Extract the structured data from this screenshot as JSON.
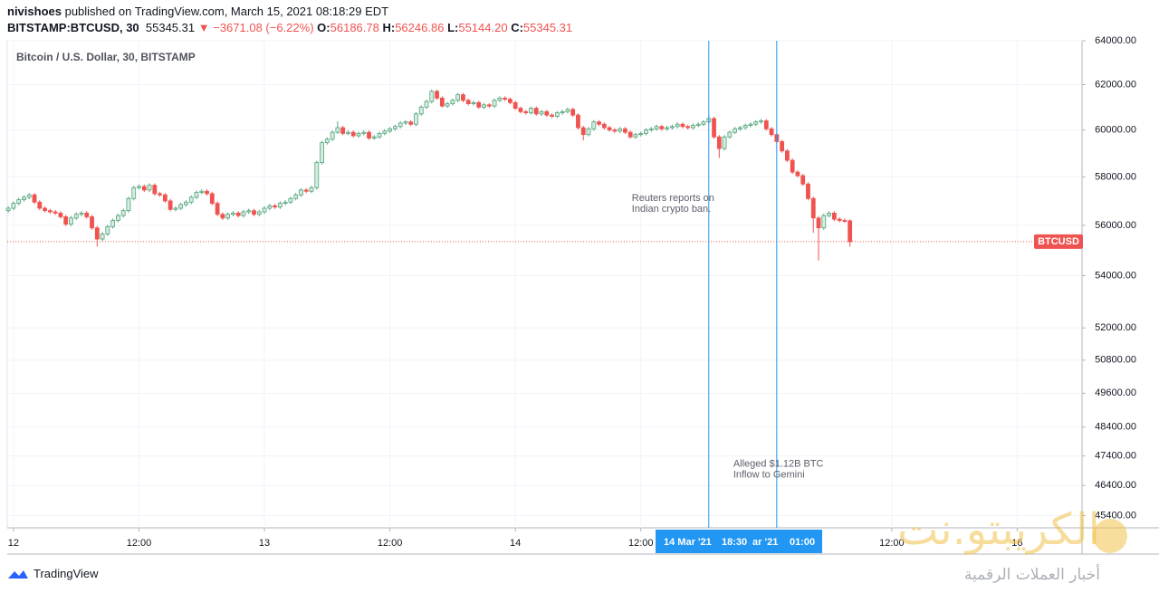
{
  "header": {
    "author": "nivishoes",
    "published": "published on TradingView.com, March 15, 2021 08:18:29 EDT",
    "symbol": "BITSTAMP:BTCUSD, 30",
    "last": "55345.31",
    "change": "▼ −3671.08 (−6.22%)",
    "o_key": "O:",
    "o": "56186.78",
    "h_key": "H:",
    "h": "56246.86",
    "l_key": "L:",
    "l": "55144.20",
    "c_key": "C:",
    "c": "55345.31"
  },
  "footer": {
    "brand": "TradingView"
  },
  "watermark": {
    "name": "الكريبتو.نت",
    "tagline": "أخبار العملات الرقمية"
  },
  "chart_data": {
    "type": "candlestick",
    "title": "Bitcoin / U.S. Dollar, 30, BITSTAMP",
    "price_label": "BTCUSD",
    "up_color": "#d5ede0",
    "up_border": "#53a37c",
    "down_color": "#ef5350",
    "price_line_color": "#ef5350",
    "event_color": "#2196f3",
    "log_scale": true,
    "grid": true,
    "xlim": [
      -0.6,
      102.2
    ],
    "xticks": [
      {
        "value": 0,
        "label": "12"
      },
      {
        "value": 12,
        "label": "12:00"
      },
      {
        "value": 24,
        "label": "13"
      },
      {
        "value": 36,
        "label": "12:00"
      },
      {
        "value": 48,
        "label": "14"
      },
      {
        "value": 60,
        "label": "12:00"
      },
      {
        "value": 84,
        "label": "12:00"
      },
      {
        "value": 96,
        "label": "16"
      }
    ],
    "ylim": [
      45000,
      64000
    ],
    "yticks": [
      {
        "value": 64000,
        "label": "64000.00"
      },
      {
        "value": 62000,
        "label": "62000.00"
      },
      {
        "value": 60000,
        "label": "60000.00"
      },
      {
        "value": 58000,
        "label": "58000.00"
      },
      {
        "value": 56000,
        "label": "56000.00"
      },
      {
        "value": 54000,
        "label": "54000.00"
      },
      {
        "value": 52000,
        "label": "52000.00"
      },
      {
        "value": 50800,
        "label": "50800.00"
      },
      {
        "value": 49600,
        "label": "49600.00"
      },
      {
        "value": 48400,
        "label": "48400.00"
      },
      {
        "value": 47400,
        "label": "47400.00"
      },
      {
        "value": 46400,
        "label": "46400.00"
      },
      {
        "value": 45400,
        "label": "45400.00"
      }
    ],
    "events": [
      {
        "x": 66.5,
        "date": "14 Mar '21",
        "time": "18:30",
        "text": [
          "Reuters reports on",
          "Indian crypto ban."
        ],
        "text_y": 57100
      },
      {
        "x": 73,
        "date": "ar '21",
        "time": "01:00",
        "text": [
          "Alleged $1.12B BTC",
          "Inflow to Gemini"
        ],
        "text_y": 47120
      }
    ],
    "x": [
      -0.5,
      0,
      0.5,
      1,
      1.5,
      2,
      2.5,
      3,
      3.5,
      4,
      4.5,
      5,
      5.5,
      6,
      6.5,
      7,
      7.5,
      8,
      8.5,
      9,
      9.5,
      10,
      10.5,
      11,
      11.5,
      12,
      12.5,
      13,
      13.5,
      14,
      14.5,
      15,
      15.5,
      16,
      16.5,
      17,
      17.5,
      18,
      18.5,
      19,
      19.5,
      20,
      20.5,
      21,
      21.5,
      22,
      22.5,
      23,
      23.5,
      24,
      24.5,
      25,
      25.5,
      26,
      26.5,
      27,
      27.5,
      28,
      28.5,
      29,
      29.5,
      30,
      30.5,
      31,
      31.5,
      32,
      32.5,
      33,
      33.5,
      34,
      34.5,
      35,
      35.5,
      36,
      36.5,
      37,
      37.5,
      38,
      38.5,
      39,
      39.5,
      40,
      40.5,
      41,
      41.5,
      42,
      42.5,
      43,
      43.5,
      44,
      44.5,
      45,
      45.5,
      46,
      46.5,
      47,
      47.5,
      48,
      48.5,
      49,
      49.5,
      50,
      50.5,
      51,
      51.5,
      52,
      52.5,
      53,
      53.5,
      54,
      54.5,
      55,
      55.5,
      56,
      56.5,
      57,
      57.5,
      58,
      58.5,
      59,
      59.5,
      60,
      60.5,
      61,
      61.5,
      62,
      62.5,
      63,
      63.5,
      64,
      64.5,
      65,
      65.5,
      66,
      66.5,
      67,
      67.5,
      68,
      68.5,
      69,
      69.5,
      70,
      70.5,
      71,
      71.5,
      72,
      72.5,
      73,
      73.5,
      74,
      74.5,
      75,
      75.5,
      76,
      76.5,
      77,
      77.5,
      78,
      78.5,
      79,
      79.5,
      80
    ],
    "open": [
      56600,
      56700,
      56900,
      57050,
      57150,
      57250,
      56950,
      56700,
      56600,
      56550,
      56500,
      56350,
      56050,
      56300,
      56450,
      56500,
      56350,
      55900,
      55450,
      55650,
      55950,
      56200,
      56400,
      56600,
      57100,
      57550,
      57600,
      57450,
      57650,
      57300,
      57250,
      57000,
      56650,
      56700,
      56850,
      56950,
      57150,
      57350,
      57400,
      57300,
      56900,
      56450,
      56300,
      56450,
      56500,
      56400,
      56550,
      56600,
      56450,
      56550,
      56700,
      56800,
      56750,
      56900,
      56950,
      57100,
      57250,
      57450,
      57400,
      57550,
      58600,
      59450,
      59600,
      59900,
      60100,
      59850,
      59900,
      59750,
      59850,
      59900,
      59650,
      59700,
      59850,
      59950,
      60050,
      60150,
      60300,
      60350,
      60250,
      60700,
      61000,
      61250,
      61700,
      61400,
      61050,
      61150,
      61300,
      61550,
      61300,
      61150,
      61200,
      61000,
      61100,
      61050,
      61300,
      61400,
      61350,
      61200,
      60950,
      60800,
      60750,
      60950,
      60700,
      60800,
      60650,
      60600,
      60750,
      60800,
      60900,
      60650,
      60100,
      59800,
      60050,
      60350,
      60250,
      60100,
      60000,
      59950,
      60050,
      59900,
      59700,
      59800,
      59850,
      60000,
      60050,
      60150,
      60050,
      60100,
      60150,
      60250,
      60150,
      60100,
      60200,
      60250,
      60350,
      60500,
      59700,
      59200,
      59700,
      59900,
      60050,
      60100,
      60200,
      60250,
      60350,
      60400,
      60050,
      59800,
      59500,
      59100,
      58700,
      58200,
      58050,
      57700,
      57100,
      56300,
      55900,
      56400,
      56500,
      56250,
      56200,
      56186.78
    ],
    "high": [
      56780,
      56980,
      57130,
      57230,
      57330,
      57330,
      57030,
      56780,
      56680,
      56630,
      56580,
      56430,
      56380,
      56530,
      56580,
      56580,
      56430,
      55980,
      55730,
      56030,
      56280,
      56480,
      56680,
      57180,
      57630,
      57680,
      57680,
      57730,
      57730,
      57380,
      57330,
      57080,
      56780,
      56930,
      57030,
      57230,
      57430,
      57480,
      57480,
      57380,
      56980,
      56530,
      56530,
      56580,
      56580,
      56630,
      56680,
      56680,
      56630,
      56780,
      56880,
      56880,
      56980,
      57030,
      57180,
      57330,
      57530,
      57530,
      57630,
      58680,
      59530,
      59680,
      59980,
      60380,
      60180,
      59980,
      59980,
      59930,
      59980,
      59980,
      59780,
      59930,
      60030,
      60130,
      60230,
      60380,
      60430,
      60430,
      60780,
      61080,
      61330,
      61780,
      61780,
      61480,
      61230,
      61380,
      61630,
      61630,
      61380,
      61280,
      61280,
      61180,
      61180,
      61380,
      61480,
      61480,
      61430,
      61280,
      61030,
      60880,
      61030,
      61030,
      60880,
      60880,
      60730,
      60830,
      60880,
      60980,
      60980,
      60730,
      60180,
      60130,
      60430,
      60430,
      60330,
      60180,
      60080,
      60130,
      60130,
      59980,
      59880,
      59930,
      60080,
      60130,
      60230,
      60230,
      60180,
      60230,
      60330,
      60330,
      60230,
      60280,
      60330,
      60430,
      60650,
      60580,
      59780,
      59780,
      59980,
      60130,
      60180,
      60280,
      60330,
      60430,
      60480,
      60480,
      60130,
      59880,
      59580,
      59180,
      58780,
      58280,
      58130,
      57780,
      57180,
      56380,
      56480,
      56580,
      56580,
      56330,
      56280,
      56246.86
    ],
    "low": [
      56520,
      56620,
      56820,
      56970,
      57070,
      56870,
      56620,
      56520,
      56470,
      56420,
      56270,
      55970,
      55970,
      56220,
      56370,
      56270,
      55820,
      55150,
      55370,
      55570,
      55870,
      56120,
      56320,
      56520,
      57020,
      57470,
      57370,
      57370,
      57220,
      57170,
      56920,
      56570,
      56570,
      56620,
      56770,
      56870,
      57070,
      57270,
      57220,
      56820,
      56370,
      56220,
      56220,
      56370,
      56320,
      56320,
      56470,
      56370,
      56370,
      56470,
      56620,
      56670,
      56670,
      56820,
      56870,
      57020,
      57170,
      57320,
      57320,
      57470,
      58520,
      59370,
      59520,
      59820,
      59770,
      59770,
      59670,
      59670,
      59770,
      59570,
      59570,
      59620,
      59770,
      59870,
      59970,
      60070,
      60220,
      60170,
      60170,
      60620,
      60920,
      61170,
      61320,
      60970,
      60970,
      61070,
      61220,
      61220,
      61070,
      61070,
      60920,
      60920,
      60970,
      60970,
      61220,
      61270,
      61120,
      60870,
      60720,
      60670,
      60670,
      60620,
      60620,
      60570,
      60520,
      60520,
      60670,
      60720,
      60570,
      60020,
      59550,
      59720,
      59970,
      60170,
      60020,
      59920,
      59870,
      59870,
      59820,
      59620,
      59620,
      59720,
      59770,
      59920,
      59970,
      59970,
      59970,
      60020,
      60070,
      60070,
      60020,
      60020,
      60120,
      60170,
      60270,
      59620,
      58800,
      59120,
      59620,
      59820,
      59970,
      60020,
      60120,
      60170,
      60270,
      59970,
      59720,
      59420,
      59020,
      58620,
      58120,
      57970,
      57620,
      57020,
      55700,
      54600,
      55820,
      56320,
      56170,
      56120,
      56100,
      55144.2
    ],
    "close": [
      56700,
      56900,
      57050,
      57150,
      57250,
      56950,
      56700,
      56600,
      56550,
      56500,
      56350,
      56050,
      56300,
      56450,
      56500,
      56350,
      55900,
      55450,
      55650,
      55950,
      56200,
      56400,
      56600,
      57100,
      57550,
      57600,
      57450,
      57650,
      57300,
      57250,
      57000,
      56650,
      56700,
      56850,
      56950,
      57150,
      57350,
      57400,
      57300,
      56900,
      56450,
      56300,
      56450,
      56500,
      56400,
      56550,
      56600,
      56450,
      56550,
      56700,
      56800,
      56750,
      56900,
      56950,
      57100,
      57250,
      57450,
      57400,
      57550,
      58600,
      59450,
      59600,
      59900,
      60100,
      59850,
      59900,
      59750,
      59850,
      59900,
      59650,
      59700,
      59850,
      59950,
      60050,
      60150,
      60300,
      60350,
      60250,
      60700,
      61000,
      61250,
      61700,
      61400,
      61050,
      61150,
      61300,
      61550,
      61300,
      61150,
      61200,
      61000,
      61100,
      61050,
      61300,
      61400,
      61350,
      61200,
      60950,
      60800,
      60750,
      60950,
      60700,
      60800,
      60650,
      60600,
      60750,
      60800,
      60900,
      60650,
      60100,
      59800,
      60050,
      60350,
      60250,
      60100,
      60000,
      59950,
      60050,
      59900,
      59700,
      59800,
      59850,
      60000,
      60050,
      60150,
      60050,
      60100,
      60150,
      60250,
      60150,
      60100,
      60200,
      60250,
      60350,
      60500,
      59700,
      59200,
      59700,
      59900,
      60050,
      60100,
      60200,
      60250,
      60350,
      60400,
      60050,
      59800,
      59500,
      59100,
      58700,
      58200,
      58050,
      57700,
      57100,
      56300,
      55900,
      56400,
      56500,
      56250,
      56200,
      56186.78,
      55345.31
    ]
  }
}
